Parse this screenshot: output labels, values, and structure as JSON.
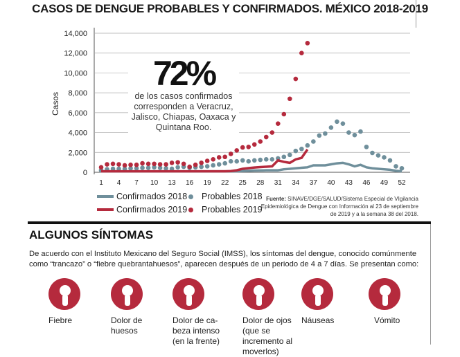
{
  "title": "CASOS DE DENGUE PROBABLES Y CONFIRMADOS. MÉXICO 2018-2019",
  "callout": {
    "value": "72%",
    "text": "de los casos confirmados corresponden a Veracruz, Jalisco, Chiapas, Oaxaca y Quintana Roo."
  },
  "source": {
    "label": "Fuente:",
    "text": " SINAVE/DGE/SALUD/Sistema Especial de VIgilancia Epidemiológica de Dengue con Información al 23 de septiembre de 2019 y a la semana 38 del 2018."
  },
  "colors": {
    "y2018": "#6f8f9b",
    "y2019": "#b52a3d"
  },
  "chart_data": {
    "type": "line",
    "title": "CASOS DE DENGUE PROBABLES Y CONFIRMADOS. MÉXICO 2018-2019",
    "xlabel": "",
    "ylabel": "Casos",
    "ylim": [
      0,
      14000
    ],
    "yticks": [
      "0",
      "2,000",
      "4,000",
      "6,000",
      "8,000",
      "10,000",
      "12,000",
      "14,000"
    ],
    "xticks": [
      "1",
      "4",
      "7",
      "10",
      "13",
      "16",
      "19",
      "22",
      "25",
      "28",
      "31",
      "34",
      "37",
      "40",
      "43",
      "46",
      "49",
      "52"
    ],
    "grid": "horizontal",
    "legend_position": "bottom",
    "series": [
      {
        "name": "Confirmados 2018",
        "style": "line",
        "color": "#6f8f9b",
        "values": [
          100,
          100,
          100,
          100,
          100,
          100,
          100,
          100,
          100,
          100,
          100,
          100,
          100,
          100,
          100,
          100,
          100,
          100,
          100,
          100,
          100,
          100,
          100,
          100,
          120,
          150,
          170,
          180,
          200,
          200,
          200,
          300,
          350,
          400,
          450,
          500,
          700,
          700,
          700,
          800,
          900,
          950,
          800,
          600,
          750,
          500,
          400,
          350,
          300,
          250,
          150,
          100
        ]
      },
      {
        "name": "Confirmados 2019",
        "style": "line",
        "color": "#b52a3d",
        "values": [
          100,
          100,
          100,
          100,
          100,
          100,
          100,
          100,
          100,
          100,
          100,
          100,
          100,
          100,
          100,
          100,
          100,
          100,
          100,
          100,
          100,
          100,
          120,
          200,
          350,
          420,
          480,
          520,
          560,
          600,
          1200,
          1050,
          950,
          1300,
          1450,
          2300
        ]
      },
      {
        "name": "Probables 2018",
        "style": "dots",
        "color": "#6f8f9b",
        "values": [
          200,
          300,
          350,
          350,
          350,
          400,
          400,
          450,
          450,
          500,
          450,
          400,
          350,
          500,
          550,
          450,
          500,
          550,
          600,
          700,
          800,
          900,
          1100,
          1100,
          1200,
          1100,
          1200,
          1250,
          1300,
          1300,
          1400,
          1550,
          1750,
          2150,
          2350,
          2700,
          3100,
          3700,
          3900,
          4500,
          5100,
          4900,
          4000,
          3750,
          4100,
          2550,
          1950,
          1700,
          1500,
          1200,
          600,
          400
        ]
      },
      {
        "name": "Probables 2019",
        "style": "dots",
        "color": "#b52a3d",
        "values": [
          500,
          800,
          850,
          800,
          700,
          750,
          750,
          900,
          850,
          850,
          800,
          800,
          950,
          1000,
          850,
          550,
          750,
          950,
          1150,
          1300,
          1500,
          1550,
          1850,
          2200,
          2500,
          2550,
          2800,
          3100,
          3550,
          4000,
          4900,
          5850,
          7400,
          9400,
          12000,
          13000
        ]
      }
    ]
  },
  "symptoms": {
    "heading": "ALGUNOS SÍNTOMAS",
    "intro": "De acuerdo con el Instituto Mexicano del Seguro Social (IMSS), los síntomas del dengue, conocido comúnmente como “trancazo” o “fiebre quebrantahuesos”, aparecen después de un periodo de 4 a 7 días. Se presentan como:",
    "items": [
      {
        "label": "Fiebre",
        "icon": "head-thermometer-icon"
      },
      {
        "label": "Dolor de huesos",
        "icon": "knee-pain-icon"
      },
      {
        "label": "Dolor de ca- beza intenso (en la frente)",
        "icon": "headache-icon"
      },
      {
        "label": "Dolor de ojos (que se incremento al moverlos)",
        "icon": "eye-pain-icon"
      },
      {
        "label": "Náuseas",
        "icon": "nausea-icon"
      },
      {
        "label": "Vómito",
        "icon": "vomit-icon"
      }
    ]
  }
}
